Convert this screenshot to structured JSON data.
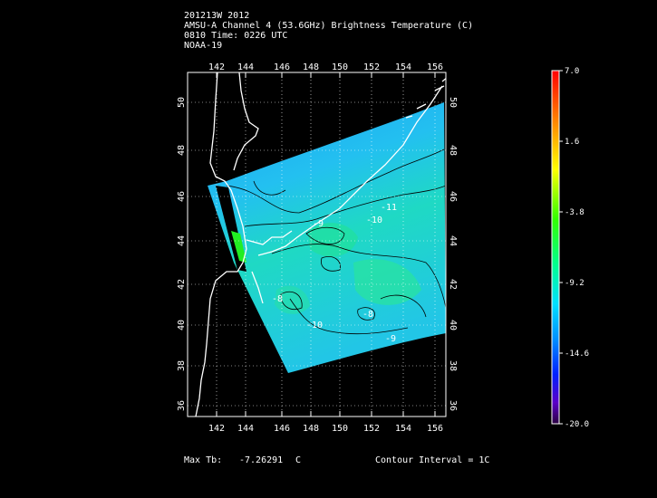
{
  "header": {
    "line1": "201213W 2012",
    "line2": "AMSU-A Channel 4 (53.6GHz) Brightness Temperature (C)",
    "line3": "0810 Time: 0226 UTC",
    "line4": "NOAA-19"
  },
  "map": {
    "lon_ticks": [
      "142",
      "144",
      "146",
      "148",
      "150",
      "152",
      "154",
      "156"
    ],
    "lat_ticks": [
      "36",
      "38",
      "40",
      "42",
      "44",
      "46",
      "48",
      "50"
    ],
    "lon_range": [
      140.7,
      156.7
    ],
    "lat_range": [
      35.2,
      51.7
    ],
    "contour_labels": [
      "-11",
      "-10",
      "-9",
      "-8",
      "-10",
      "-9",
      "-8"
    ]
  },
  "colorbar": {
    "labels": [
      "7.0",
      "1.6",
      "-3.8",
      "-9.2",
      "-14.6",
      "-20.0"
    ],
    "range": [
      -20.0,
      7.0
    ]
  },
  "footer": {
    "max_tb_label": "Max Tb:",
    "max_tb_value": "-7.26291",
    "max_tb_unit": "C",
    "contour_interval": "Contour Interval = 1C"
  }
}
